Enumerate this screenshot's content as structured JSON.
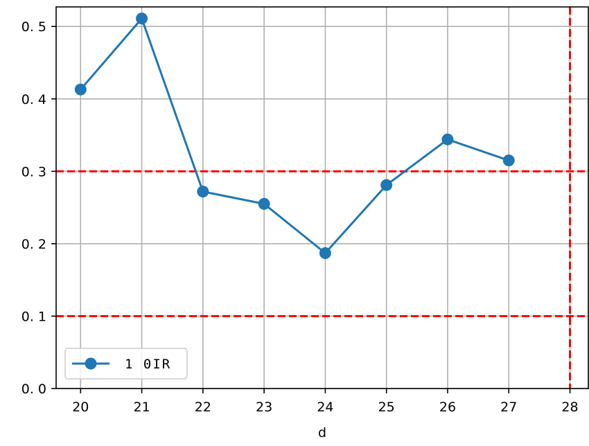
{
  "chart_data": {
    "type": "line",
    "title": "",
    "xlabel": "d",
    "ylabel": "",
    "xlim": [
      19.6,
      28.3
    ],
    "ylim": [
      0.0,
      0.527
    ],
    "xticks": [
      20,
      21,
      22,
      23,
      24,
      25,
      26,
      27,
      28
    ],
    "xtick_labels": [
      "20",
      "21",
      "22",
      "23",
      "24",
      "25",
      "26",
      "27",
      "28"
    ],
    "yticks": [
      0.0,
      0.1,
      0.2,
      0.3,
      0.4,
      0.5
    ],
    "ytick_labels": [
      "0. 0",
      "0. 1",
      "0. 2",
      "0. 3",
      "0. 4",
      "0. 5"
    ],
    "grid": true,
    "legend_position": "lower-left",
    "series": [
      {
        "name": "1 0IR",
        "color": "#1f77b4",
        "marker": "circle",
        "x": [
          20,
          21,
          22,
          23,
          24,
          25,
          26,
          27
        ],
        "y": [
          0.413,
          0.511,
          0.272,
          0.255,
          0.187,
          0.281,
          0.344,
          0.315
        ]
      }
    ],
    "reference_lines": [
      {
        "orientation": "horizontal",
        "value": 0.3,
        "color": "#ff0000",
        "style": "dashed"
      },
      {
        "orientation": "horizontal",
        "value": 0.1,
        "color": "#ff0000",
        "style": "dashed"
      },
      {
        "orientation": "vertical",
        "value": 28,
        "color": "#ff0000",
        "style": "dashed"
      }
    ]
  }
}
